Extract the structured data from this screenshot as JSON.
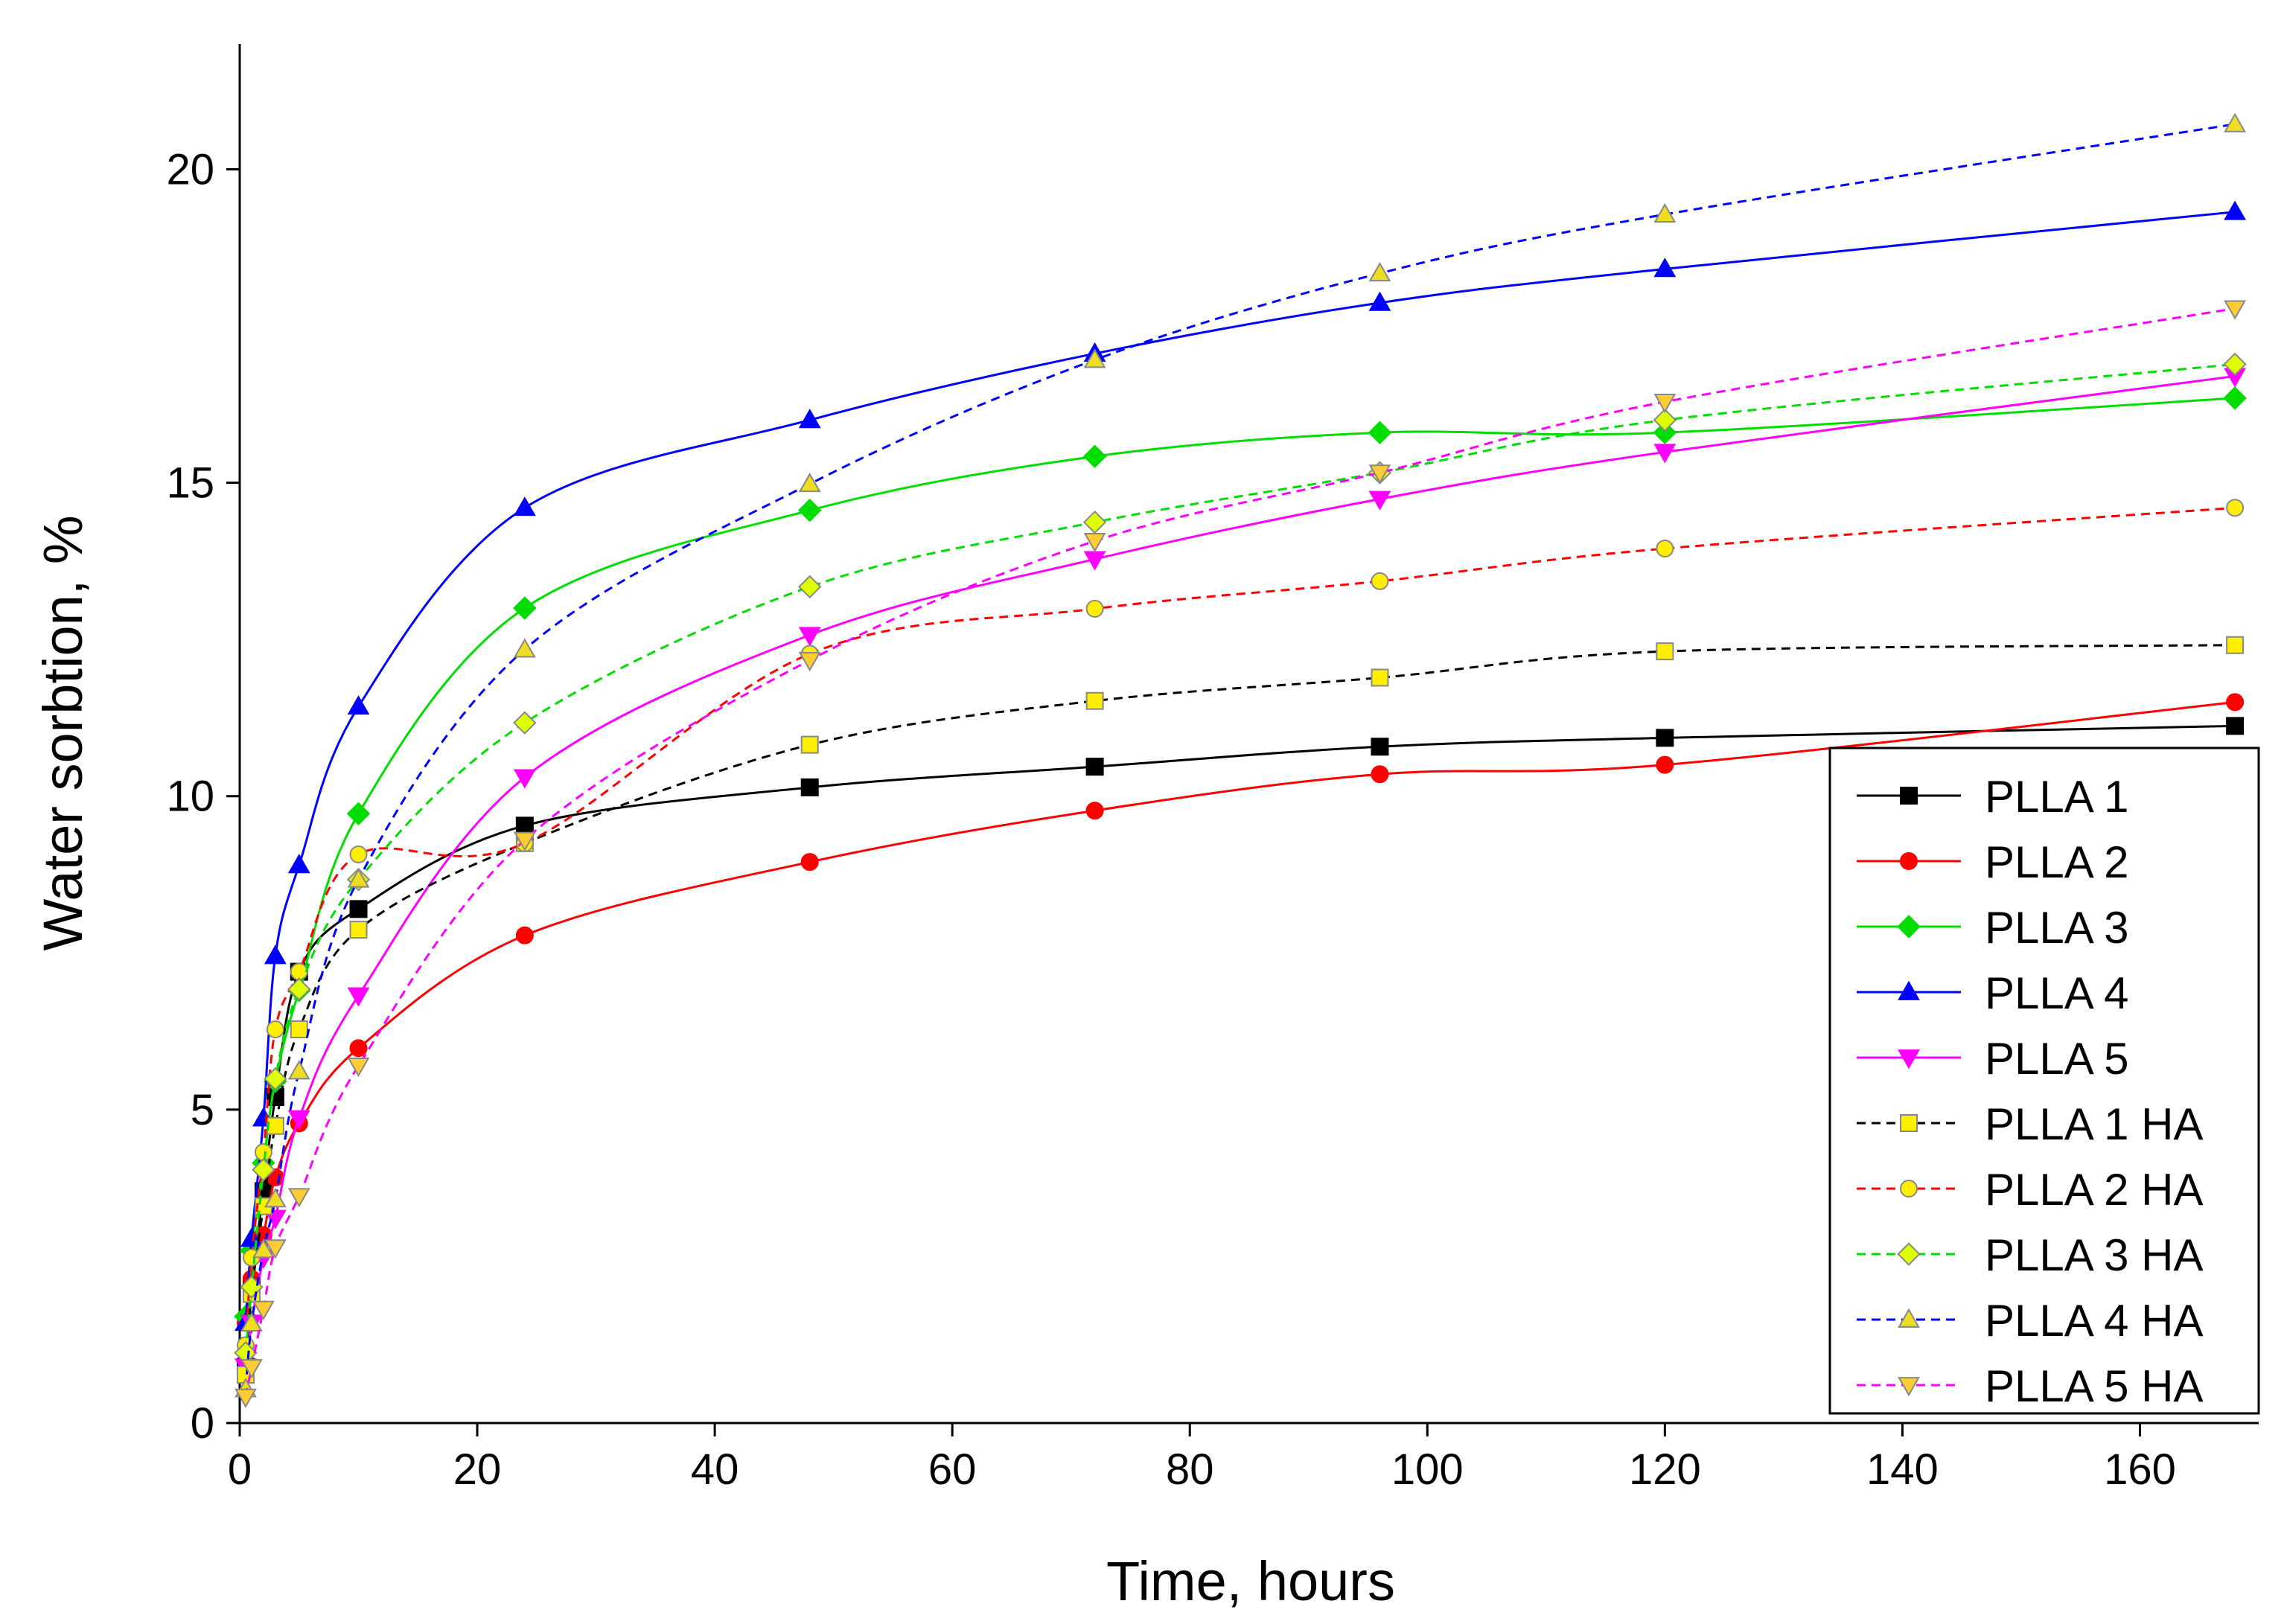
{
  "chart_data": {
    "type": "line",
    "x_label": "Time, hours",
    "y_label": "Water  sorbtion, %",
    "x": [
      0.5,
      1,
      2,
      3,
      5,
      10,
      24,
      48,
      72,
      96,
      120,
      168
    ],
    "xlim": [
      0,
      170
    ],
    "ylim": [
      0,
      22
    ],
    "xticks": [
      0,
      20,
      40,
      60,
      80,
      100,
      120,
      140,
      160
    ],
    "yticks": [
      0,
      5,
      10,
      15,
      20
    ],
    "legend": "lower right",
    "series": [
      {
        "name": "PLLA 1",
        "color": "#000000",
        "marker": "square",
        "marker_fill": "#000000",
        "line_style": "solid",
        "values": [
          0.9,
          2.2,
          3.7,
          5.2,
          7.2,
          8.2,
          9.53,
          10.14,
          10.47,
          10.79,
          10.93,
          11.12
        ]
      },
      {
        "name": "PLLA 2",
        "color": "#ff0000",
        "marker": "circle",
        "marker_fill": "#ff0000",
        "line_style": "solid",
        "values": [
          1.6,
          2.3,
          3.0,
          3.92,
          4.78,
          5.98,
          7.78,
          8.95,
          9.77,
          10.35,
          10.5,
          11.5
        ]
      },
      {
        "name": "PLLA 3",
        "color": "#00dd00",
        "marker": "diamond",
        "marker_fill": "#00dd00",
        "line_style": "solid",
        "values": [
          1.7,
          2.75,
          4.15,
          5.45,
          6.9,
          9.72,
          13.0,
          14.56,
          15.42,
          15.8,
          15.8,
          16.35
        ]
      },
      {
        "name": "PLLA 4",
        "color": "#0000ff",
        "marker": "triangle-up",
        "marker_fill": "#0000ff",
        "line_style": "solid",
        "values": [
          1.6,
          2.94,
          4.86,
          7.45,
          8.9,
          11.43,
          14.6,
          16.0,
          17.06,
          17.87,
          18.41,
          19.32
        ]
      },
      {
        "name": "PLLA 5",
        "color": "#ff00ff",
        "marker": "triangle-down",
        "marker_fill": "#ff00ff",
        "line_style": "solid",
        "values": [
          0.9,
          1.6,
          2.64,
          3.27,
          4.86,
          6.82,
          10.3,
          12.57,
          13.78,
          14.74,
          15.49,
          16.7
        ]
      },
      {
        "name": "PLLA 1 HA",
        "color": "#000000",
        "marker": "square",
        "marker_fill": "#ffee00",
        "line_style": "dashed",
        "values": [
          0.77,
          2.06,
          3.46,
          4.74,
          6.28,
          7.87,
          9.25,
          10.82,
          11.52,
          11.89,
          12.31,
          12.41
        ]
      },
      {
        "name": "PLLA 2 HA",
        "color": "#ff0000",
        "marker": "circle",
        "marker_fill": "#ffee00",
        "line_style": "dashed",
        "values": [
          1.24,
          2.64,
          4.32,
          6.28,
          7.2,
          9.07,
          9.25,
          12.27,
          12.99,
          13.43,
          13.95,
          14.6
        ]
      },
      {
        "name": "PLLA 3 HA",
        "color": "#00dd00",
        "marker": "diamond",
        "marker_fill": "#ddff00",
        "line_style": "dashed",
        "values": [
          1.12,
          2.17,
          4.04,
          5.49,
          6.92,
          8.67,
          11.17,
          13.34,
          14.37,
          15.16,
          16.0,
          16.89
        ]
      },
      {
        "name": "PLLA 4 HA",
        "color": "#0000ff",
        "marker": "triangle-up",
        "marker_fill": "#eedd22",
        "line_style": "dashed",
        "values": [
          0.54,
          1.59,
          2.76,
          3.57,
          5.61,
          8.67,
          12.34,
          14.98,
          16.96,
          18.34,
          19.28,
          20.72
        ]
      },
      {
        "name": "PLLA 5 HA",
        "color": "#ff00ff",
        "marker": "triangle-down",
        "marker_fill": "#ffcc33",
        "line_style": "dashed",
        "values": [
          0.42,
          0.89,
          1.82,
          2.8,
          3.62,
          5.7,
          9.3,
          12.17,
          14.07,
          15.16,
          16.29,
          17.78
        ]
      }
    ]
  }
}
